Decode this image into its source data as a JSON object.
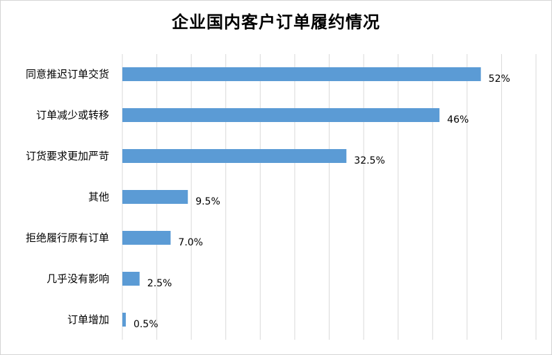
{
  "chart_data": {
    "type": "bar",
    "orientation": "horizontal",
    "title": "企业国内客户订单履约情况",
    "categories": [
      "同意推迟订单交货",
      "订单减少或转移",
      "订货要求更加严苛",
      "其他",
      "拒绝履行原有订单",
      "几乎没有影响",
      "订单增加"
    ],
    "values": [
      52,
      46,
      32.5,
      9.5,
      7.0,
      2.5,
      0.5
    ],
    "value_labels": [
      "52%",
      "46%",
      "32.5%",
      "9.5%",
      "7.0%",
      "2.5%",
      "0.5%"
    ],
    "xlim": [
      0,
      60
    ],
    "grid": true,
    "bar_color": "#5b9bd5"
  }
}
